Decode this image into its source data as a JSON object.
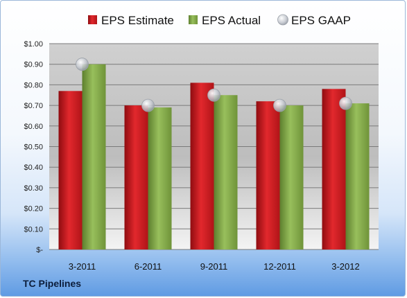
{
  "chart_data": {
    "type": "bar",
    "categories": [
      "3-2011",
      "6-2011",
      "9-2011",
      "12-2011",
      "3-2012"
    ],
    "series": [
      {
        "name": "EPS Estimate",
        "kind": "bar",
        "values": [
          0.77,
          0.7,
          0.81,
          0.72,
          0.78
        ],
        "color": "#c8191e"
      },
      {
        "name": "EPS Actual",
        "kind": "bar",
        "values": [
          0.9,
          0.69,
          0.75,
          0.7,
          0.71
        ],
        "color": "#7ea546"
      },
      {
        "name": "EPS GAAP",
        "kind": "marker",
        "values": [
          0.9,
          0.7,
          0.75,
          0.7,
          0.71
        ],
        "color": "#b4b9c2"
      }
    ],
    "y_ticks": [
      "$-",
      "$0.10",
      "$0.20",
      "$0.30",
      "$0.40",
      "$0.50",
      "$0.60",
      "$0.70",
      "$0.80",
      "$0.90",
      "$1.00"
    ],
    "ylim": [
      0,
      1.0
    ],
    "grid": true,
    "legend_position": "top"
  },
  "footer": {
    "company": "TC Pipelines"
  }
}
